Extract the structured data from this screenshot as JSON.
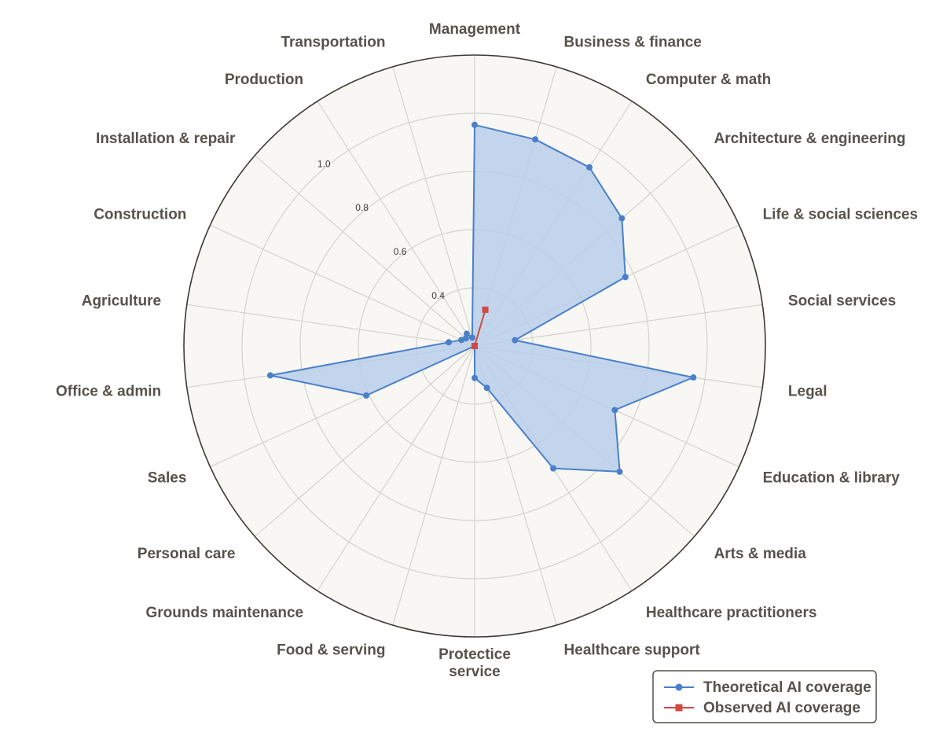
{
  "chart_data": {
    "type": "radar",
    "categories": [
      "Management",
      "Business & finance",
      "Computer & math",
      "Architecture & engineering",
      "Life & social sciences",
      "Social services",
      "Legal",
      "Education & library",
      "Arts & media",
      "Healthcare practitioners",
      "Healthcare support",
      "Protectice\nservice",
      "Food & serving",
      "Grounds maintenance",
      "Personal care",
      "Sales",
      "Office & admin",
      "Agriculture",
      "Construction",
      "Installation & repair",
      "Production",
      "Transportation"
    ],
    "series": [
      {
        "name": "Theoretical AI coverage",
        "color": "#4a80c8",
        "fill": "#b9cfea",
        "marker": "circle",
        "values": [
          0.96,
          0.94,
          0.93,
          0.87,
          0.77,
          0.34,
          0.96,
          0.73,
          0.86,
          0.7,
          0.35,
          0.31,
          0.14,
          0.15,
          0.08,
          0.61,
          0.91,
          0.29,
          0.25,
          0.24,
          0.25,
          0.23
        ]
      },
      {
        "name": "Observed AI coverage",
        "color": "#d14a45",
        "fill": "#e8a0a0",
        "marker": "square",
        "values": [
          0.12,
          0.33,
          0.07,
          0.03,
          0.09,
          0.04,
          0.1,
          0.13,
          0.14,
          0.1,
          0.08,
          0.03,
          0.03,
          0.02,
          0.02,
          0.1,
          0.18,
          0.02,
          0.01,
          0.01,
          0.02,
          0.01
        ]
      }
    ],
    "r_ticks": [
      "0.4",
      "0.6",
      "0.8",
      "1.0"
    ],
    "r_tick_values": [
      0.4,
      0.6,
      0.8,
      1.0
    ],
    "r_range": [
      0.2,
      1.2
    ],
    "grid": true,
    "legend_position": "bottom-right"
  }
}
